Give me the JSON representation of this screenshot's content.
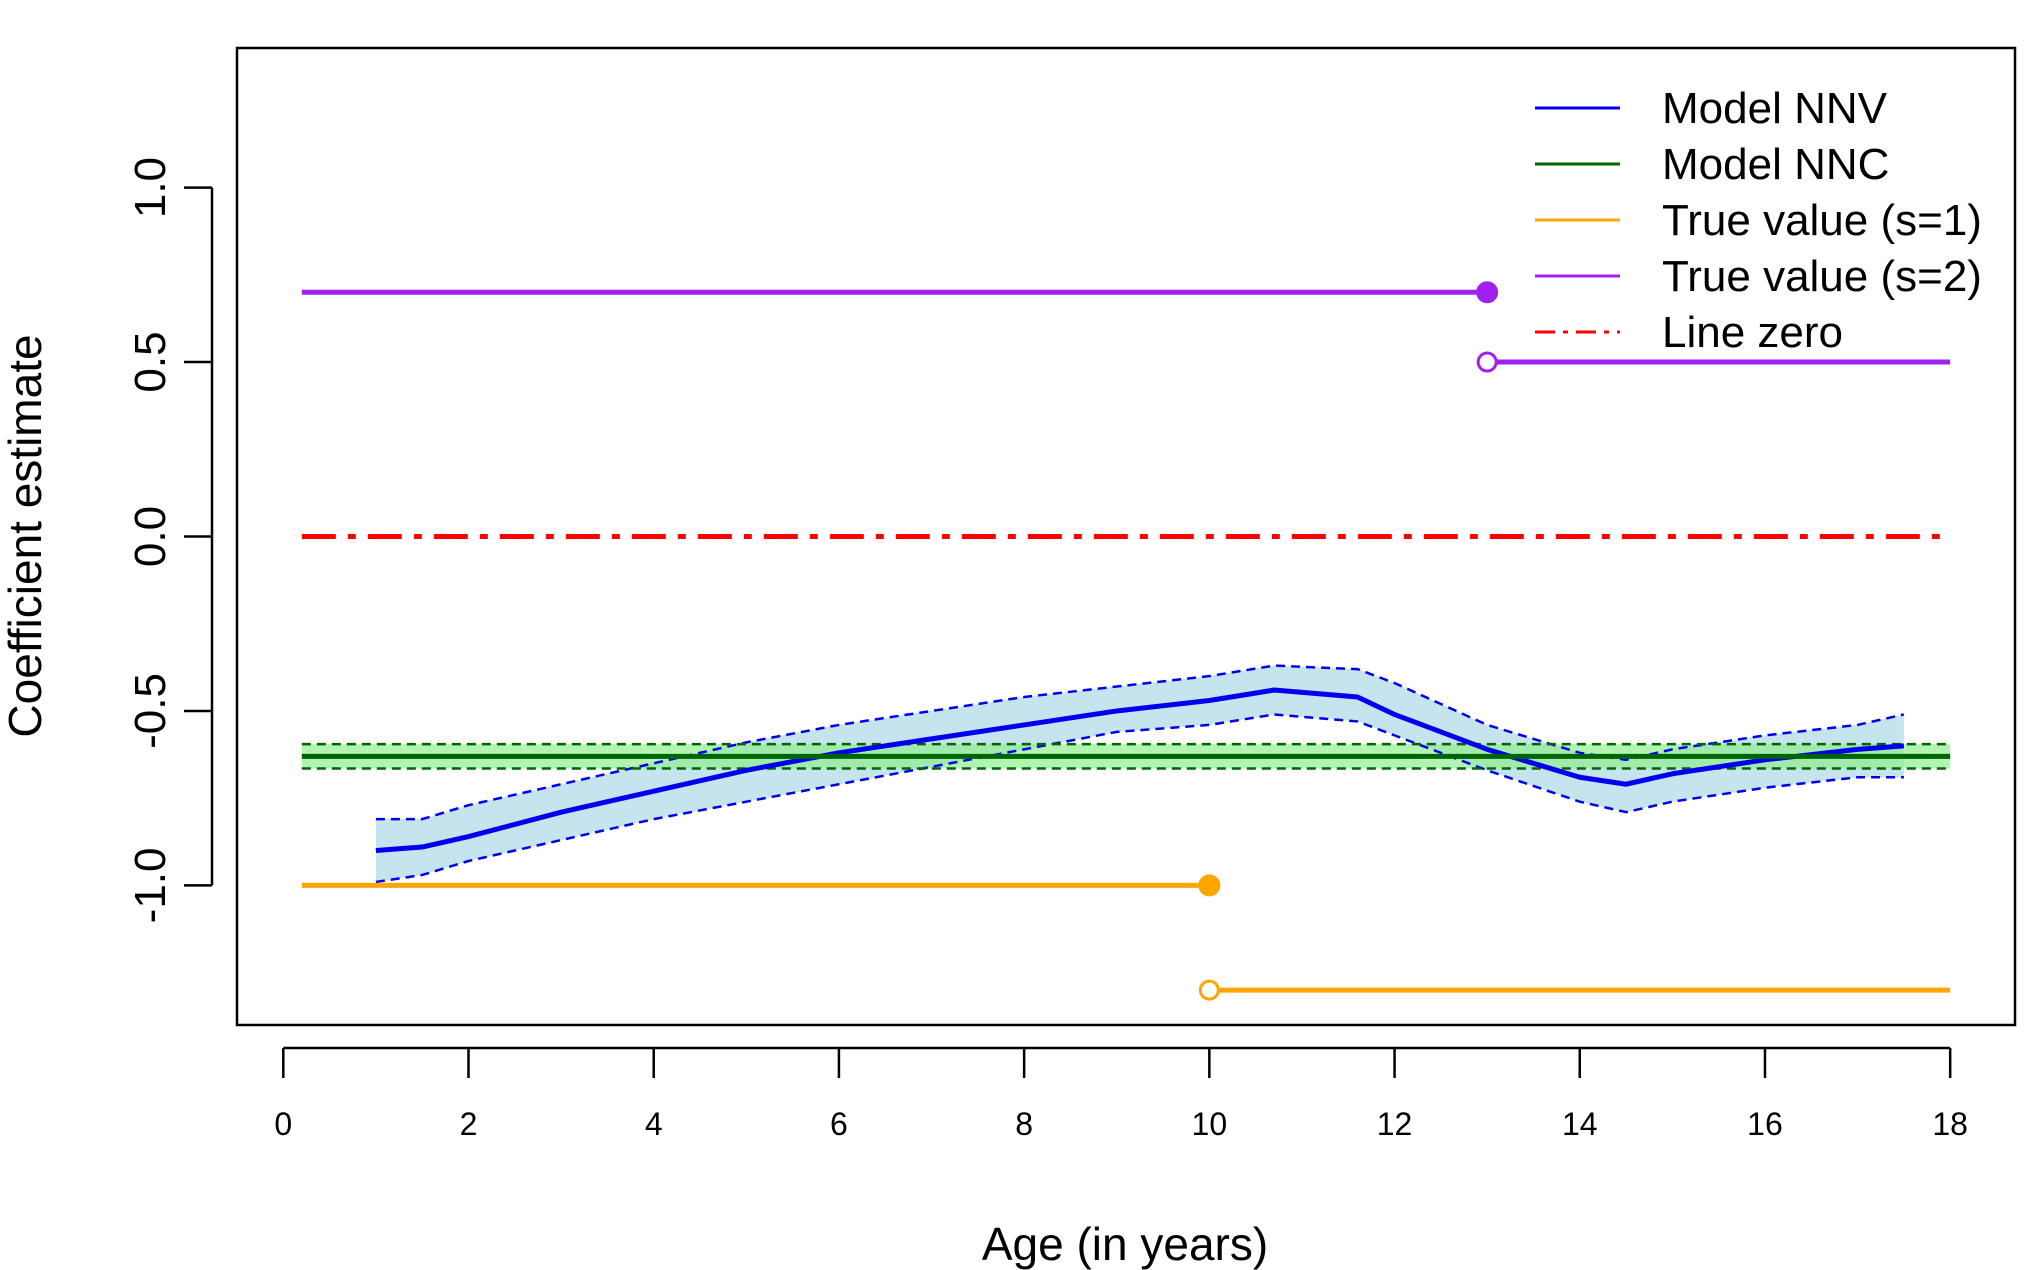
{
  "chart_data": {
    "type": "line",
    "title": "",
    "xlabel": "Age (in years)",
    "ylabel": "Coefficient estimate",
    "xlim": [
      -0.5,
      18.7
    ],
    "ylim": [
      -1.4,
      1.4
    ],
    "xticks": [
      0,
      2,
      4,
      6,
      8,
      10,
      12,
      14,
      16,
      18
    ],
    "xtick_labels": [
      "0",
      "2",
      "4",
      "6",
      "8",
      "10",
      "12",
      "14",
      "16",
      "18"
    ],
    "yticks": [
      1.0,
      0.5,
      0.0,
      -0.5,
      -1.0
    ],
    "ytick_labels": [
      "1.0",
      "0.5",
      "0.0",
      "-0.5",
      "-1.0"
    ],
    "grid": false,
    "legend_position": "top-right",
    "legend": [
      {
        "label": "Model NNV",
        "color": "#0000ee",
        "style": "solid"
      },
      {
        "label": "Model NNC",
        "color": "#006400",
        "style": "solid"
      },
      {
        "label": "True value (s=1)",
        "color": "#ffa500",
        "style": "solid"
      },
      {
        "label": "True value (s=2)",
        "color": "#a020f0",
        "style": "solid"
      },
      {
        "label": "Line zero",
        "color": "#ff0000",
        "style": "dashdot"
      }
    ],
    "series": [
      {
        "name": "Model NNV",
        "color": "#0000ee",
        "band_color": "#add8e6",
        "x": [
          1,
          1.5,
          2,
          3,
          4,
          5,
          6,
          7,
          8,
          9,
          10,
          10.7,
          11.6,
          12,
          13,
          14,
          14.5,
          15,
          16,
          17,
          17.5
        ],
        "y": [
          -0.9,
          -0.89,
          -0.86,
          -0.79,
          -0.73,
          -0.67,
          -0.62,
          -0.58,
          -0.54,
          -0.5,
          -0.47,
          -0.44,
          -0.46,
          -0.51,
          -0.61,
          -0.69,
          -0.71,
          -0.68,
          -0.64,
          -0.61,
          -0.6
        ],
        "lower": [
          -0.99,
          -0.97,
          -0.93,
          -0.87,
          -0.81,
          -0.76,
          -0.71,
          -0.66,
          -0.61,
          -0.56,
          -0.54,
          -0.51,
          -0.53,
          -0.57,
          -0.67,
          -0.76,
          -0.79,
          -0.76,
          -0.72,
          -0.69,
          -0.69
        ],
        "upper": [
          -0.81,
          -0.81,
          -0.77,
          -0.71,
          -0.65,
          -0.59,
          -0.54,
          -0.5,
          -0.46,
          -0.43,
          -0.4,
          -0.37,
          -0.38,
          -0.42,
          -0.54,
          -0.62,
          -0.64,
          -0.61,
          -0.57,
          -0.54,
          -0.51
        ]
      },
      {
        "name": "Model NNC",
        "color": "#006400",
        "band_color": "#90ee90",
        "x": [
          0.2,
          18
        ],
        "y": [
          -0.63,
          -0.63
        ],
        "lower": [
          -0.665,
          -0.665
        ],
        "upper": [
          -0.595,
          -0.595
        ]
      }
    ],
    "step_series": [
      {
        "name": "True value (s=1)",
        "color": "#ffa500",
        "segments": [
          {
            "x": [
              0.2,
              10
            ],
            "y": -1.0,
            "end_marker": "filled"
          },
          {
            "x": [
              10,
              18
            ],
            "y": -1.3,
            "start_marker": "open"
          }
        ]
      },
      {
        "name": "True value (s=2)",
        "color": "#a020f0",
        "segments": [
          {
            "x": [
              0.2,
              13
            ],
            "y": 0.7,
            "end_marker": "filled"
          },
          {
            "x": [
              13,
              18
            ],
            "y": 0.5,
            "start_marker": "open"
          }
        ]
      }
    ],
    "reference_line": {
      "name": "Line zero",
      "color": "#ff0000",
      "style": "dashdot",
      "y": 0.0,
      "x": [
        0.2,
        18
      ]
    }
  }
}
